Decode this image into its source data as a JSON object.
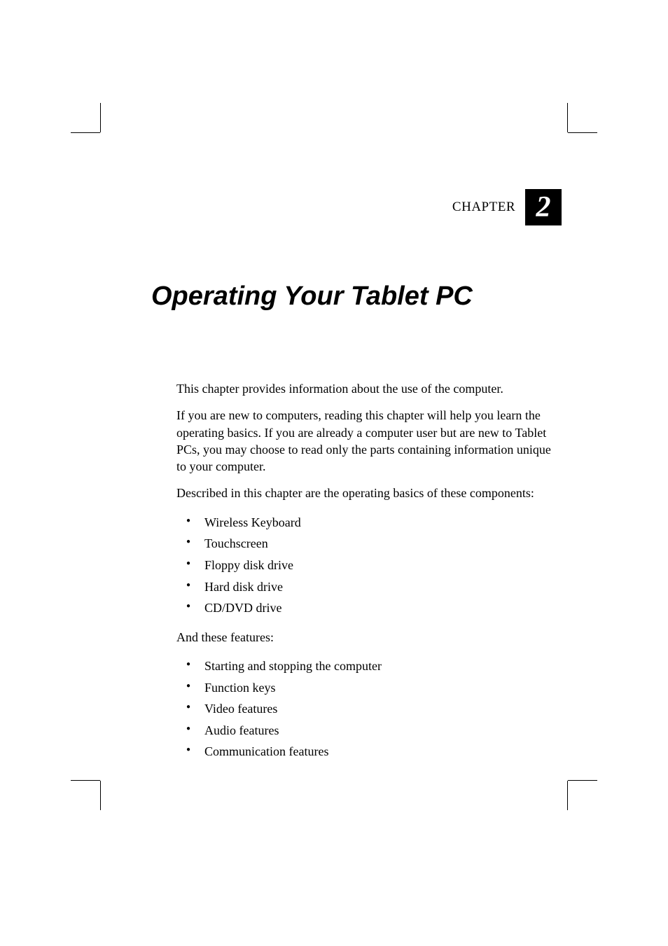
{
  "chapter": {
    "label": "CHAPTER",
    "number": "2",
    "title": "Operating Your Tablet PC"
  },
  "paragraphs": {
    "intro": "This chapter provides information about the use of the computer.",
    "newusers": "If you are new to computers, reading this chapter will help you learn the operating basics. If you are already a computer user but are new to Tablet PCs, you may choose to read only the parts containing information unique to your computer.",
    "described": "Described in this chapter are the operating basics of these components:",
    "andfeatures": "And these features:"
  },
  "components": [
    "Wireless Keyboard",
    "Touchscreen",
    "Floppy disk drive",
    "Hard disk drive",
    "CD/DVD drive"
  ],
  "features": [
    "Starting and stopping the computer",
    "Function keys",
    "Video features",
    "Audio features",
    "Communication features"
  ]
}
